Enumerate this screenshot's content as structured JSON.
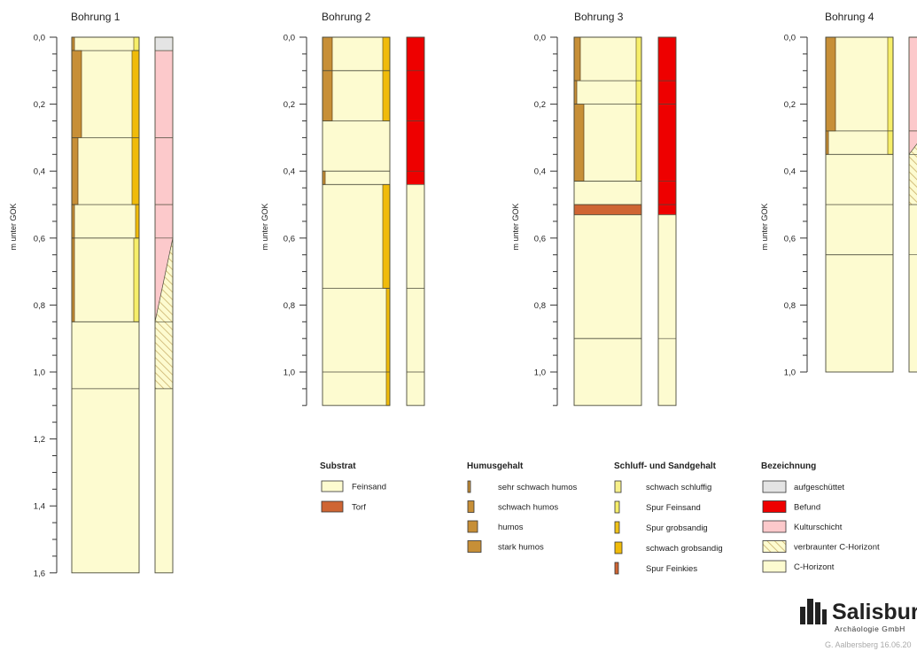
{
  "diagram": {
    "depth_unit_label": "m unter GOK",
    "boreholes": [
      {
        "title": "Bohrung 1",
        "max_depth": 1.6,
        "tick_labels": [
          "0,0",
          "0,2",
          "0,4",
          "0,6",
          "0,8",
          "1,0",
          "1,2",
          "1,4",
          "1,6"
        ],
        "layers": [
          [
            0,
            0.04
          ],
          [
            0.04,
            0.3
          ],
          [
            0.3,
            0.5
          ],
          [
            0.5,
            0.6
          ],
          [
            0.6,
            0.85
          ],
          [
            0.85,
            1.05
          ],
          [
            1.05,
            1.6
          ]
        ],
        "humus": [
          {
            "from": 0,
            "to": 0.04,
            "class": "sehr schwach humos"
          },
          {
            "from": 0.04,
            "to": 0.3,
            "class": "humos"
          },
          {
            "from": 0.3,
            "to": 0.5,
            "class": "schwach humos"
          },
          {
            "from": 0.5,
            "to": 0.6,
            "class": "sehr schwach humos"
          },
          {
            "from": 0.6,
            "to": 0.85,
            "class": "sehr schwach humos"
          }
        ],
        "silt_sand": [
          {
            "from": 0,
            "to": 0.04,
            "class": "Spur Feinsand"
          },
          {
            "from": 0.04,
            "to": 0.5,
            "class": "schwach grobsandig"
          },
          {
            "from": 0.5,
            "to": 0.6,
            "class": "Spur grobsandig"
          },
          {
            "from": 0.6,
            "to": 0.85,
            "class": "Spur Feinsand"
          }
        ],
        "designation": [
          {
            "from": 0,
            "to": 0.04,
            "class": "aufgeschüttet"
          },
          {
            "from": 0.04,
            "to": 0.6,
            "class": "Kulturschicht"
          },
          {
            "shape": "diagonal",
            "from": 0.6,
            "to": 0.85,
            "upper": "Kulturschicht",
            "lower": "verbraunter C-Horizont"
          },
          {
            "from": 0.85,
            "to": 1.05,
            "class": "verbraunter C-Horizont"
          },
          {
            "from": 1.05,
            "to": 1.6,
            "class": "C-Horizont"
          }
        ]
      },
      {
        "title": "Bohrung 2",
        "max_depth": 1.1,
        "tick_labels": [
          "0,0",
          "0,2",
          "0,4",
          "0,6",
          "0,8",
          "1,0"
        ],
        "layers": [
          [
            0,
            0.1
          ],
          [
            0.1,
            0.25
          ],
          [
            0.25,
            0.4
          ],
          [
            0.4,
            0.44
          ],
          [
            0.44,
            0.75
          ],
          [
            0.75,
            1.0
          ],
          [
            1.0,
            1.1
          ]
        ],
        "humus": [
          {
            "from": 0,
            "to": 0.25,
            "class": "humos"
          },
          {
            "from": 0.4,
            "to": 0.44,
            "class": "sehr schwach humos"
          }
        ],
        "silt_sand": [
          {
            "from": 0,
            "to": 0.25,
            "class": "schwach grobsandig"
          },
          {
            "from": 0.44,
            "to": 0.75,
            "class": "schwach grobsandig"
          },
          {
            "from": 0.75,
            "to": 1.1,
            "class": "Spur grobsandig"
          }
        ],
        "designation": [
          {
            "from": 0,
            "to": 0.44,
            "class": "Befund"
          },
          {
            "from": 0.44,
            "to": 1.1,
            "class": "C-Horizont"
          }
        ]
      },
      {
        "title": "Bohrung 3",
        "max_depth": 1.1,
        "tick_labels": [
          "0,0",
          "0,2",
          "0,4",
          "0,6",
          "0,8",
          "1,0"
        ],
        "layers": [
          [
            0,
            0.13
          ],
          [
            0.13,
            0.2
          ],
          [
            0.2,
            0.43
          ],
          [
            0.43,
            0.5
          ],
          [
            0.5,
            0.53
          ],
          [
            0.53,
            0.9
          ],
          [
            0.9,
            1.1
          ]
        ],
        "humus": [
          {
            "from": 0,
            "to": 0.13,
            "class": "schwach humos"
          },
          {
            "from": 0.13,
            "to": 0.2,
            "class": "sehr schwach humos"
          },
          {
            "from": 0.2,
            "to": 0.43,
            "class": "humos"
          }
        ],
        "silt_sand": [
          {
            "from": 0,
            "to": 0.43,
            "class": "Spur Feinsand"
          }
        ],
        "substrate_special": [
          {
            "from": 0.5,
            "to": 0.53,
            "class": "Torf"
          }
        ],
        "designation": [
          {
            "from": 0,
            "to": 0.53,
            "class": "Befund"
          },
          {
            "from": 0.53,
            "to": 1.1,
            "class": "C-Horizont"
          }
        ]
      },
      {
        "title": "Bohrung 4",
        "max_depth": 1.0,
        "tick_labels": [
          "0,0",
          "0,2",
          "0,4",
          "0,6",
          "0,8",
          "1,0"
        ],
        "layers": [
          [
            0,
            0.28
          ],
          [
            0.28,
            0.35
          ],
          [
            0.35,
            0.5
          ],
          [
            0.5,
            0.65
          ],
          [
            0.65,
            1.0
          ]
        ],
        "humus": [
          {
            "from": 0,
            "to": 0.28,
            "class": "humos"
          },
          {
            "from": 0.28,
            "to": 0.35,
            "class": "sehr schwach humos"
          }
        ],
        "silt_sand": [
          {
            "from": 0,
            "to": 0.35,
            "class": "Spur Feinsand"
          }
        ],
        "designation": [
          {
            "from": 0,
            "to": 0.28,
            "class": "Kulturschicht"
          },
          {
            "shape": "diagonal",
            "from": 0.28,
            "to": 0.35,
            "upper": "Kulturschicht",
            "lower": "verbraunter C-Horizont"
          },
          {
            "from": 0.35,
            "to": 0.5,
            "class": "verbraunter C-Horizont"
          },
          {
            "from": 0.5,
            "to": 1.0,
            "class": "C-Horizont"
          }
        ]
      }
    ],
    "legend": {
      "substrat": {
        "title": "Substrat",
        "items": [
          {
            "label": "Feinsand",
            "swatch": "box",
            "color": "#fdfbd0"
          },
          {
            "label": "Torf",
            "swatch": "box",
            "color": "#cf6533"
          }
        ]
      },
      "humusgehalt": {
        "title": "Humusgehalt",
        "items": [
          {
            "label": "sehr schwach humos",
            "width": 3
          },
          {
            "label": "schwach humos",
            "width": 7
          },
          {
            "label": "humos",
            "width": 11
          },
          {
            "label": "stark humos",
            "width": 15
          }
        ]
      },
      "schluff": {
        "title": "Schluff- und Sandgehalt",
        "items": [
          {
            "label": "schwach schluffig",
            "color": "#f7f08a"
          },
          {
            "label": "Spur Feinsand",
            "color": "#f6ee6a"
          },
          {
            "label": "Spur grobsandig",
            "color": "#eec21a"
          },
          {
            "label": "schwach grobsandig",
            "color": "#f0bb0a"
          },
          {
            "label": "Spur Feinkies",
            "color": "#cf6533"
          }
        ]
      },
      "bezeichnung": {
        "title": "Bezeichnung",
        "items": [
          {
            "label": "aufgeschüttet",
            "key": "aufgeschüttet"
          },
          {
            "label": "Befund",
            "key": "Befund"
          },
          {
            "label": "Kulturschicht",
            "key": "Kulturschicht"
          },
          {
            "label": "verbraunter C-Horizont",
            "key": "verbraunter C-Horizont"
          },
          {
            "label": "C-Horizont",
            "key": "C-Horizont"
          }
        ]
      }
    },
    "logo": {
      "name": "Salisbury",
      "subtitle": "Archäologie GmbH"
    },
    "credit": "G. Aalbersberg 16.06.20"
  },
  "colors": {
    "feinsand": "#fdfbd0",
    "torf": "#cf6533",
    "humus": "#c78f37",
    "sand_strong": "#f0bb0a",
    "sand_trace": "#f6ee6a",
    "befund": "#ee0000",
    "kulturschicht": "#fcc9cb",
    "aufgeschuettet": "#e4e4e4",
    "c_horizont": "#fdfbd0",
    "hatch_line": "#c9b06a"
  }
}
